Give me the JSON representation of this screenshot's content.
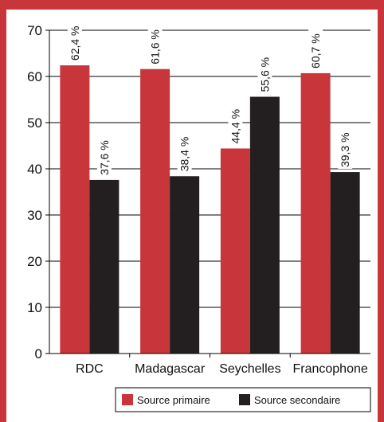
{
  "chart_data": {
    "type": "bar",
    "categories": [
      "RDC",
      "Madagascar",
      "Seychelles",
      "Francophone"
    ],
    "series": [
      {
        "name": "Source primaire",
        "values": [
          62.4,
          61.6,
          44.4,
          60.7
        ],
        "labels": [
          "62,4 %",
          "61,6 %",
          "44,4 %",
          "60,7 %"
        ],
        "color": "#c8363b"
      },
      {
        "name": "Source secondaire",
        "values": [
          37.6,
          38.4,
          55.6,
          39.3
        ],
        "labels": [
          "37,6 %",
          "38,4 %",
          "55,6 %",
          "39,3 %"
        ],
        "color": "#231f20"
      }
    ],
    "ylim": [
      0,
      70
    ],
    "yticks": [
      "0",
      "10",
      "20",
      "30",
      "40",
      "50",
      "60",
      "70"
    ],
    "grid": true,
    "legend_position": "bottom-right"
  },
  "colors": {
    "frame": "#c8363b",
    "grid": "#000000"
  }
}
